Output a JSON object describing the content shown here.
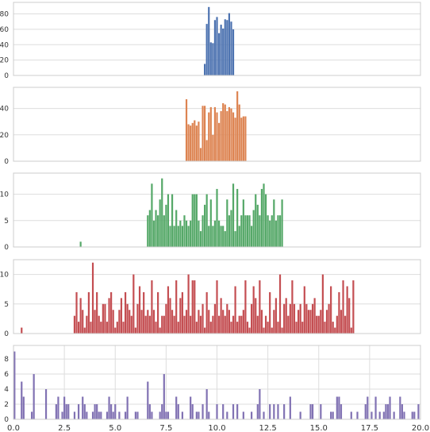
{
  "chart_data": [
    {
      "type": "bar",
      "color": "#4c72b0",
      "ylim": [
        0,
        95
      ],
      "yticks": [
        0,
        20,
        40,
        60,
        80
      ],
      "ytick_labels": [
        "0",
        "20",
        "40",
        "60",
        "80"
      ],
      "xlim": [
        0,
        20
      ],
      "grid": "y",
      "x": [
        9.4,
        9.5,
        9.6,
        9.7,
        9.8,
        9.9,
        10.0,
        10.1,
        10.2,
        10.3,
        10.4,
        10.5,
        10.6,
        10.7,
        10.8,
        10.9,
        11.0,
        11.1,
        11.2,
        11.3
      ],
      "values": [
        15,
        67,
        89,
        43,
        42,
        72,
        76,
        55,
        66,
        61,
        73,
        72,
        81,
        70,
        60,
        0,
        0,
        0,
        0,
        0
      ]
    },
    {
      "type": "bar",
      "color": "#dd8452",
      "ylim": [
        0,
        56
      ],
      "yticks": [
        0,
        20,
        40
      ],
      "ytick_labels": [
        "0",
        "20",
        "40"
      ],
      "xlim": [
        0,
        20
      ],
      "grid": "y",
      "x": [
        8.5,
        8.6,
        8.7,
        8.8,
        8.9,
        9.0,
        9.1,
        9.2,
        9.3,
        9.4,
        9.5,
        9.6,
        9.7,
        9.8,
        9.9,
        10.0,
        10.1,
        10.2,
        10.3,
        10.4,
        10.5,
        10.6,
        10.7,
        10.8,
        10.9,
        11.0,
        11.1,
        11.2,
        11.3,
        11.4,
        11.5,
        11.6,
        11.7,
        11.8
      ],
      "values": [
        47,
        28,
        27,
        29,
        31,
        27,
        30,
        10,
        42,
        42,
        16,
        37,
        41,
        20,
        41,
        37,
        29,
        38,
        44,
        43,
        38,
        41,
        40,
        37,
        33,
        53,
        43,
        33,
        34,
        34,
        0,
        0,
        0,
        0
      ]
    },
    {
      "type": "bar",
      "color": "#55a868",
      "ylim": [
        0,
        14
      ],
      "yticks": [
        0,
        5,
        10
      ],
      "ytick_labels": [
        "0",
        "5",
        "10"
      ],
      "xlim": [
        0,
        20
      ],
      "grid": "y",
      "x": [
        3.3,
        6.6,
        6.7,
        6.8,
        6.9,
        7.0,
        7.1,
        7.2,
        7.3,
        7.4,
        7.5,
        7.6,
        7.7,
        7.8,
        7.9,
        8.0,
        8.1,
        8.2,
        8.3,
        8.4,
        8.5,
        8.6,
        8.7,
        8.8,
        8.9,
        9.0,
        9.1,
        9.2,
        9.3,
        9.4,
        9.5,
        9.6,
        9.7,
        9.8,
        9.9,
        10.0,
        10.1,
        10.2,
        10.3,
        10.4,
        10.5,
        10.6,
        10.7,
        10.8,
        10.9,
        11.0,
        11.1,
        11.2,
        11.3,
        11.4,
        11.5,
        11.6,
        11.7,
        11.8,
        11.9,
        12.0,
        12.1,
        12.2,
        12.3,
        12.4,
        12.5,
        12.6,
        12.7,
        12.8,
        12.9,
        13.0,
        13.1,
        13.2
      ],
      "values": [
        1,
        6,
        7,
        12,
        5,
        7,
        6,
        9,
        13,
        6,
        8,
        10,
        4,
        10,
        4,
        7,
        4,
        5,
        4,
        6,
        5,
        4,
        5,
        10,
        10,
        10,
        5,
        3,
        6,
        8,
        10,
        4,
        9,
        4,
        5,
        11,
        5,
        4,
        4,
        3,
        9,
        6,
        7,
        12,
        3,
        11,
        4,
        6,
        9,
        6,
        6,
        6,
        4,
        7,
        10,
        8,
        6,
        11,
        12,
        10,
        6,
        5,
        6,
        9,
        5,
        6,
        6,
        9
      ]
    },
    {
      "type": "bar",
      "color": "#c44e52",
      "ylim": [
        0,
        12.5
      ],
      "yticks": [
        0,
        5,
        10
      ],
      "ytick_labels": [
        "0",
        "5",
        "10"
      ],
      "xlim": [
        0,
        20
      ],
      "grid": "y",
      "x": [
        0.4,
        3.0,
        3.1,
        3.2,
        3.3,
        3.4,
        3.5,
        3.6,
        3.7,
        3.8,
        3.9,
        4.0,
        4.1,
        4.2,
        4.3,
        4.4,
        4.5,
        4.6,
        4.7,
        4.8,
        4.9,
        5.0,
        5.1,
        5.2,
        5.3,
        5.4,
        5.5,
        5.6,
        5.7,
        5.8,
        5.9,
        6.0,
        6.1,
        6.2,
        6.3,
        6.4,
        6.5,
        6.6,
        6.7,
        6.8,
        6.9,
        7.0,
        7.1,
        7.2,
        7.3,
        7.4,
        7.5,
        7.6,
        7.7,
        7.8,
        7.9,
        8.0,
        8.1,
        8.2,
        8.3,
        8.4,
        8.5,
        8.6,
        8.7,
        8.8,
        8.9,
        9.0,
        9.1,
        9.2,
        9.3,
        9.4,
        9.5,
        9.6,
        9.7,
        9.8,
        9.9,
        10.0,
        10.1,
        10.2,
        10.3,
        10.4,
        10.5,
        10.6,
        10.7,
        10.8,
        10.9,
        11.0,
        11.1,
        11.2,
        11.3,
        11.4,
        11.5,
        11.6,
        11.7,
        11.8,
        11.9,
        12.0,
        12.1,
        12.2,
        12.3,
        12.4,
        12.5,
        12.6,
        12.7,
        12.8,
        12.9,
        13.0,
        13.1,
        13.2,
        13.3,
        13.4,
        13.5,
        13.6,
        13.7,
        13.8,
        13.9,
        14.0,
        14.1,
        14.2,
        14.3,
        14.4,
        14.5,
        14.6,
        14.7,
        14.8,
        14.9,
        15.0,
        15.1,
        15.2,
        15.3,
        15.4,
        15.5,
        15.6,
        15.7,
        15.8,
        15.9,
        16.0,
        16.1,
        16.2,
        16.3,
        16.4,
        16.5,
        16.6,
        16.7
      ],
      "values": [
        1,
        3,
        7,
        2,
        6,
        4,
        1,
        3,
        7,
        2,
        12,
        4,
        7,
        3,
        2,
        5,
        5,
        2,
        6,
        7,
        4,
        1,
        2,
        4,
        6,
        2,
        7,
        5,
        4,
        3,
        10,
        1,
        5,
        8,
        4,
        7,
        3,
        4,
        3,
        9,
        4,
        2,
        7,
        1,
        3,
        3,
        5,
        8,
        6,
        4,
        3,
        9,
        2,
        6,
        7,
        3,
        4,
        10,
        3,
        9,
        9,
        2,
        4,
        3,
        5,
        1,
        7,
        4,
        2,
        3,
        5,
        9,
        3,
        6,
        4,
        3,
        5,
        4,
        2,
        3,
        8,
        2,
        3,
        3,
        4,
        9,
        2,
        1,
        5,
        8,
        6,
        3,
        9,
        4,
        1,
        3,
        2,
        7,
        1,
        4,
        6,
        2,
        10,
        1,
        5,
        6,
        3,
        5,
        9,
        5,
        2,
        4,
        5,
        2,
        8,
        5,
        4,
        4,
        5,
        6,
        3,
        3,
        4,
        10,
        2,
        4,
        5,
        8,
        2,
        1,
        3,
        7,
        4,
        9,
        3,
        8,
        6,
        1,
        9
      ]
    },
    {
      "type": "bar",
      "color": "#8172b3",
      "ylim": [
        0,
        9.8
      ],
      "yticks": [
        0,
        2,
        4,
        6,
        8
      ],
      "ytick_labels": [
        "0",
        "2",
        "4",
        "6",
        "8"
      ],
      "xlim": [
        0,
        20
      ],
      "xticks": [
        0,
        2.5,
        5,
        7.5,
        10,
        12.5,
        15,
        17.5,
        20
      ],
      "xtick_labels": [
        "0.0",
        "2.5",
        "5.0",
        "7.5",
        "10.0",
        "12.5",
        "15.0",
        "17.5",
        "20.0"
      ],
      "grid": "both",
      "x": [
        0.05,
        0.4,
        0.5,
        0.9,
        1.0,
        1.6,
        2.1,
        2.2,
        2.4,
        2.5,
        2.6,
        2.7,
        3.0,
        3.2,
        3.4,
        3.5,
        3.6,
        3.9,
        4.0,
        4.1,
        4.2,
        4.3,
        4.6,
        4.7,
        4.8,
        4.9,
        5.0,
        5.2,
        5.5,
        5.6,
        6.0,
        6.1,
        6.6,
        6.7,
        6.8,
        7.2,
        7.3,
        7.4,
        7.5,
        7.6,
        8.0,
        8.1,
        8.3,
        8.7,
        8.8,
        9.0,
        9.1,
        9.3,
        9.5,
        9.6,
        10.0,
        10.3,
        10.5,
        10.8,
        11.0,
        11.3,
        11.7,
        12.0,
        12.1,
        12.3,
        12.6,
        12.8,
        13.0,
        13.3,
        13.6,
        14.1,
        14.6,
        14.7,
        15.1,
        15.6,
        15.7,
        15.9,
        16.0,
        16.1,
        16.6,
        16.9,
        17.3,
        17.4,
        17.6,
        17.8,
        18.0,
        18.2,
        18.3,
        18.4,
        18.5,
        18.7,
        19.0,
        19.1,
        19.2,
        19.6,
        19.7,
        19.9
      ],
      "values": [
        9,
        5,
        3,
        1,
        6,
        4,
        2,
        3,
        1,
        3,
        2,
        2,
        1,
        2,
        3,
        2,
        1,
        1,
        2,
        2,
        1,
        1,
        1,
        3,
        2,
        1,
        2,
        1,
        1,
        3,
        1,
        1,
        5,
        2,
        1,
        1,
        2,
        6,
        1,
        1,
        3,
        2,
        1,
        3,
        2,
        1,
        1,
        2,
        4,
        1,
        2,
        2,
        1,
        2,
        2,
        1,
        1,
        2,
        4,
        1,
        2,
        2,
        2,
        2,
        3,
        1,
        2,
        2,
        2,
        1,
        1,
        3,
        3,
        2,
        1,
        1,
        2,
        3,
        1,
        3,
        1,
        1,
        2,
        2,
        3,
        1,
        3,
        2,
        1,
        1,
        1,
        2
      ]
    }
  ]
}
